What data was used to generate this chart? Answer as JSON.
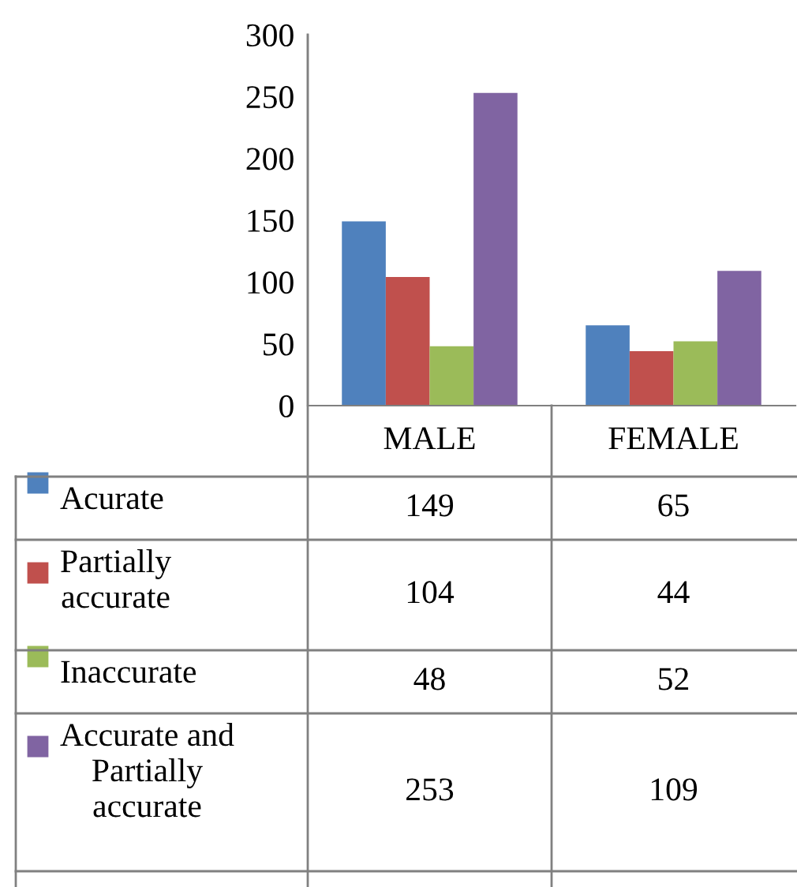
{
  "chart_data": {
    "type": "bar",
    "categories": [
      "MALE",
      "FEMALE"
    ],
    "series": [
      {
        "name": "Acurate",
        "color": "#4f81bd",
        "values": [
          149,
          65
        ]
      },
      {
        "name": "Partially\naccurate",
        "color": "#c0504d",
        "values": [
          104,
          44
        ]
      },
      {
        "name": "Inaccurate",
        "color": "#9bbb59",
        "values": [
          48,
          52
        ]
      },
      {
        "name": "Accurate and\nPartially\naccurate",
        "color": "#8064a2",
        "values": [
          253,
          109
        ]
      }
    ],
    "ylim": [
      0,
      300
    ],
    "yticks": [
      0,
      50,
      100,
      150,
      200,
      250,
      300
    ],
    "grid": false,
    "data_labels": true,
    "legend": "bottom"
  }
}
